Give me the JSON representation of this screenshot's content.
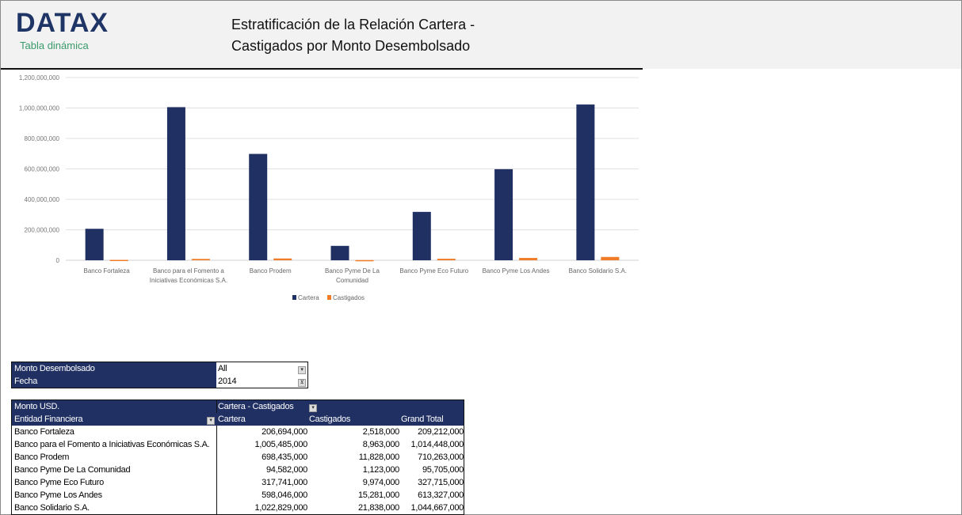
{
  "header": {
    "logo": "DATAX",
    "subtitle": "Tabla dinámica",
    "title_line1": "Estratificación de la Relación Cartera -",
    "title_line2": "Castigados por Monto Desembolsado"
  },
  "chart_data": {
    "type": "bar",
    "ylim": [
      0,
      1200000000
    ],
    "yticks": [
      "0",
      "200,000,000",
      "400,000,000",
      "600,000,000",
      "800,000,000",
      "1,000,000,000",
      "1,200,000,000"
    ],
    "categories": [
      [
        "Banco Fortaleza"
      ],
      [
        "Banco para el Fomento a",
        "Iniciativas Económicas S.A."
      ],
      [
        "Banco Prodem"
      ],
      [
        "Banco Pyme De La",
        "Comunidad"
      ],
      [
        "Banco Pyme Eco Futuro"
      ],
      [
        "Banco Pyme Los Andes"
      ],
      [
        "Banco Solidario S.A."
      ]
    ],
    "series": [
      {
        "name": "Cartera",
        "color": "#203063",
        "values": [
          206694000,
          1005485000,
          698435000,
          94582000,
          317741000,
          598046000,
          1022829000
        ]
      },
      {
        "name": "Castigados",
        "color": "#f07c28",
        "values": [
          2518000,
          8963000,
          11828000,
          1123000,
          9974000,
          15281000,
          21838000
        ]
      }
    ],
    "grid": true,
    "legend": "bottom"
  },
  "filters": [
    {
      "label": "Monto Desembolsado",
      "value": "All",
      "icon": "dropdown-icon"
    },
    {
      "label": "Fecha",
      "value": "2014",
      "icon": "filter-icon"
    }
  ],
  "pivot": {
    "value_label": "Monto USD.",
    "column_field": "Cartera - Castigados",
    "row_field": "Entidad Financiera",
    "columns": [
      "Cartera",
      "Castigados",
      "Grand Total"
    ],
    "rows": [
      [
        "Banco Fortaleza",
        "206,694,000",
        "2,518,000",
        "209,212,000"
      ],
      [
        "Banco para el Fomento a Iniciativas Económicas S.A.",
        "1,005,485,000",
        "8,963,000",
        "1,014,448,000"
      ],
      [
        "Banco Prodem",
        "698,435,000",
        "11,828,000",
        "710,263,000"
      ],
      [
        "Banco Pyme De La Comunidad",
        "94,582,000",
        "1,123,000",
        "95,705,000"
      ],
      [
        "Banco Pyme Eco Futuro",
        "317,741,000",
        "9,974,000",
        "327,715,000"
      ],
      [
        "Banco Pyme Los Andes",
        "598,046,000",
        "15,281,000",
        "613,327,000"
      ],
      [
        "Banco Solidario S.A.",
        "1,022,829,000",
        "21,838,000",
        "1,044,667,000"
      ]
    ]
  }
}
